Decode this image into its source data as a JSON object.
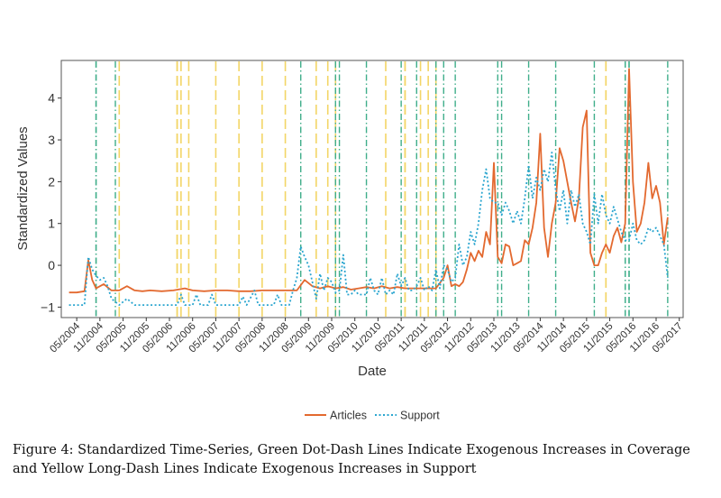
{
  "chart_data": {
    "type": "line",
    "xlabel": "Date",
    "ylabel": "Standardized Values",
    "x_tick_labels": [
      "05/2004",
      "11/2004",
      "05/2005",
      "11/2005",
      "05/2006",
      "11/2006",
      "05/2007",
      "11/2007",
      "05/2008",
      "11/2008",
      "05/2009",
      "11/2009",
      "05/2010",
      "11/2010",
      "05/2011",
      "11/2011",
      "05/2012",
      "11/2012",
      "05/2013",
      "11/2013",
      "05/2014",
      "11/2014",
      "05/2015",
      "11/2015",
      "05/2016",
      "11/2016",
      "05/2017"
    ],
    "y_ticks": [
      -1,
      0,
      1,
      2,
      3,
      4
    ],
    "ylim": [
      -1.25,
      4.9
    ],
    "xlim": [
      "01/2004",
      "06/2017"
    ],
    "grid": false,
    "legend_position": "bottom",
    "series": [
      {
        "name": "Articles",
        "color": "#e3692f",
        "style": "solid",
        "points": [
          [
            "03/2004",
            -0.65
          ],
          [
            "05/2004",
            -0.65
          ],
          [
            "07/2004",
            -0.62
          ],
          [
            "08/2004",
            0.12
          ],
          [
            "09/2004",
            -0.35
          ],
          [
            "10/2004",
            -0.55
          ],
          [
            "12/2004",
            -0.45
          ],
          [
            "02/2005",
            -0.6
          ],
          [
            "04/2005",
            -0.6
          ],
          [
            "06/2005",
            -0.5
          ],
          [
            "08/2005",
            -0.6
          ],
          [
            "10/2005",
            -0.62
          ],
          [
            "12/2005",
            -0.6
          ],
          [
            "03/2006",
            -0.62
          ],
          [
            "06/2006",
            -0.6
          ],
          [
            "09/2006",
            -0.55
          ],
          [
            "11/2006",
            -0.6
          ],
          [
            "02/2007",
            -0.62
          ],
          [
            "05/2007",
            -0.6
          ],
          [
            "08/2007",
            -0.6
          ],
          [
            "11/2007",
            -0.62
          ],
          [
            "02/2008",
            -0.62
          ],
          [
            "05/2008",
            -0.6
          ],
          [
            "08/2008",
            -0.6
          ],
          [
            "11/2008",
            -0.6
          ],
          [
            "02/2009",
            -0.6
          ],
          [
            "04/2009",
            -0.35
          ],
          [
            "06/2009",
            -0.5
          ],
          [
            "08/2009",
            -0.55
          ],
          [
            "10/2009",
            -0.5
          ],
          [
            "12/2009",
            -0.55
          ],
          [
            "02/2010",
            -0.52
          ],
          [
            "04/2010",
            -0.58
          ],
          [
            "06/2010",
            -0.55
          ],
          [
            "08/2010",
            -0.52
          ],
          [
            "10/2010",
            -0.55
          ],
          [
            "12/2010",
            -0.5
          ],
          [
            "02/2011",
            -0.55
          ],
          [
            "04/2011",
            -0.52
          ],
          [
            "06/2011",
            -0.55
          ],
          [
            "08/2011",
            -0.55
          ],
          [
            "10/2011",
            -0.55
          ],
          [
            "12/2011",
            -0.55
          ],
          [
            "02/2012",
            -0.55
          ],
          [
            "04/2012",
            -0.3
          ],
          [
            "05/2012",
            0.0
          ],
          [
            "06/2012",
            -0.5
          ],
          [
            "07/2012",
            -0.45
          ],
          [
            "08/2012",
            -0.5
          ],
          [
            "09/2012",
            -0.4
          ],
          [
            "10/2012",
            -0.1
          ],
          [
            "11/2012",
            0.3
          ],
          [
            "12/2012",
            0.1
          ],
          [
            "01/2013",
            0.35
          ],
          [
            "02/2013",
            0.2
          ],
          [
            "03/2013",
            0.8
          ],
          [
            "04/2013",
            0.5
          ],
          [
            "05/2013",
            2.45
          ],
          [
            "06/2013",
            0.2
          ],
          [
            "07/2013",
            0.05
          ],
          [
            "08/2013",
            0.5
          ],
          [
            "09/2013",
            0.45
          ],
          [
            "10/2013",
            0.0
          ],
          [
            "11/2013",
            0.05
          ],
          [
            "12/2013",
            0.1
          ],
          [
            "01/2014",
            0.6
          ],
          [
            "02/2014",
            0.5
          ],
          [
            "03/2014",
            0.9
          ],
          [
            "04/2014",
            1.5
          ],
          [
            "05/2014",
            3.15
          ],
          [
            "06/2014",
            0.9
          ],
          [
            "07/2014",
            0.2
          ],
          [
            "08/2014",
            1.0
          ],
          [
            "09/2014",
            1.5
          ],
          [
            "10/2014",
            2.8
          ],
          [
            "11/2014",
            2.5
          ],
          [
            "12/2014",
            2.0
          ],
          [
            "01/2015",
            1.5
          ],
          [
            "02/2015",
            1.05
          ],
          [
            "03/2015",
            1.6
          ],
          [
            "04/2015",
            3.3
          ],
          [
            "05/2015",
            3.7
          ],
          [
            "06/2015",
            0.3
          ],
          [
            "07/2015",
            0.0
          ],
          [
            "08/2015",
            0.0
          ],
          [
            "09/2015",
            0.3
          ],
          [
            "10/2015",
            0.5
          ],
          [
            "11/2015",
            0.3
          ],
          [
            "12/2015",
            0.7
          ],
          [
            "01/2016",
            0.9
          ],
          [
            "02/2016",
            0.55
          ],
          [
            "03/2016",
            1.0
          ],
          [
            "04/2016",
            4.7
          ],
          [
            "05/2016",
            2.0
          ],
          [
            "06/2016",
            0.8
          ],
          [
            "07/2016",
            1.0
          ],
          [
            "08/2016",
            1.5
          ],
          [
            "09/2016",
            2.45
          ],
          [
            "10/2016",
            1.6
          ],
          [
            "11/2016",
            1.9
          ],
          [
            "12/2016",
            1.5
          ],
          [
            "01/2017",
            0.5
          ],
          [
            "02/2017",
            1.15
          ]
        ]
      },
      {
        "name": "Support",
        "color": "#2aa5cf",
        "style": "dotted",
        "points": [
          [
            "03/2004",
            -0.95
          ],
          [
            "05/2004",
            -0.95
          ],
          [
            "07/2004",
            -0.95
          ],
          [
            "08/2004",
            0.2
          ],
          [
            "09/2004",
            -0.1
          ],
          [
            "10/2004",
            -0.25
          ],
          [
            "11/2004",
            -0.35
          ],
          [
            "12/2004",
            -0.3
          ],
          [
            "01/2005",
            -0.5
          ],
          [
            "02/2005",
            -0.8
          ],
          [
            "04/2005",
            -0.95
          ],
          [
            "06/2005",
            -0.8
          ],
          [
            "08/2005",
            -0.95
          ],
          [
            "11/2005",
            -0.95
          ],
          [
            "02/2006",
            -0.95
          ],
          [
            "05/2006",
            -0.95
          ],
          [
            "07/2006",
            -0.95
          ],
          [
            "08/2006",
            -0.7
          ],
          [
            "09/2006",
            -0.95
          ],
          [
            "11/2006",
            -0.95
          ],
          [
            "12/2006",
            -0.7
          ],
          [
            "01/2007",
            -0.95
          ],
          [
            "03/2007",
            -0.95
          ],
          [
            "04/2007",
            -0.7
          ],
          [
            "05/2007",
            -0.95
          ],
          [
            "07/2007",
            -0.95
          ],
          [
            "09/2007",
            -0.95
          ],
          [
            "11/2007",
            -0.95
          ],
          [
            "12/2007",
            -0.75
          ],
          [
            "01/2008",
            -0.95
          ],
          [
            "03/2008",
            -0.6
          ],
          [
            "04/2008",
            -0.95
          ],
          [
            "06/2008",
            -0.95
          ],
          [
            "08/2008",
            -0.95
          ],
          [
            "09/2008",
            -0.7
          ],
          [
            "10/2008",
            -0.95
          ],
          [
            "12/2008",
            -0.95
          ],
          [
            "01/2009",
            -0.6
          ],
          [
            "02/2009",
            -0.3
          ],
          [
            "03/2009",
            0.45
          ],
          [
            "04/2009",
            0.2
          ],
          [
            "05/2009",
            0.0
          ],
          [
            "06/2009",
            -0.4
          ],
          [
            "07/2009",
            -0.8
          ],
          [
            "08/2009",
            -0.2
          ],
          [
            "09/2009",
            -0.6
          ],
          [
            "10/2009",
            -0.3
          ],
          [
            "11/2009",
            -0.4
          ],
          [
            "12/2009",
            -0.65
          ],
          [
            "01/2010",
            -0.6
          ],
          [
            "02/2010",
            0.25
          ],
          [
            "03/2010",
            -0.7
          ],
          [
            "04/2010",
            -0.7
          ],
          [
            "05/2010",
            -0.6
          ],
          [
            "06/2010",
            -0.7
          ],
          [
            "08/2010",
            -0.7
          ],
          [
            "09/2010",
            -0.3
          ],
          [
            "10/2010",
            -0.6
          ],
          [
            "11/2010",
            -0.7
          ],
          [
            "12/2010",
            -0.3
          ],
          [
            "01/2011",
            -0.7
          ],
          [
            "02/2011",
            -0.6
          ],
          [
            "03/2011",
            -0.7
          ],
          [
            "04/2011",
            -0.2
          ],
          [
            "05/2011",
            -0.5
          ],
          [
            "06/2011",
            -0.3
          ],
          [
            "07/2011",
            -0.6
          ],
          [
            "08/2011",
            -0.6
          ],
          [
            "09/2011",
            -0.5
          ],
          [
            "10/2011",
            -0.3
          ],
          [
            "11/2011",
            -0.6
          ],
          [
            "12/2011",
            -0.5
          ],
          [
            "01/2012",
            -0.6
          ],
          [
            "02/2012",
            -0.1
          ],
          [
            "03/2012",
            -0.55
          ],
          [
            "04/2012",
            0.0
          ],
          [
            "05/2012",
            -0.1
          ],
          [
            "06/2012",
            -0.4
          ],
          [
            "07/2012",
            -0.3
          ],
          [
            "08/2012",
            0.5
          ],
          [
            "09/2012",
            0.0
          ],
          [
            "10/2012",
            0.2
          ],
          [
            "11/2012",
            0.8
          ],
          [
            "12/2012",
            0.5
          ],
          [
            "01/2013",
            1.0
          ],
          [
            "02/2013",
            1.8
          ],
          [
            "03/2013",
            2.3
          ],
          [
            "04/2013",
            1.6
          ],
          [
            "05/2013",
            1.5
          ],
          [
            "06/2013",
            1.5
          ],
          [
            "07/2013",
            1.2
          ],
          [
            "08/2013",
            1.5
          ],
          [
            "09/2013",
            1.3
          ],
          [
            "10/2013",
            1.0
          ],
          [
            "11/2013",
            1.3
          ],
          [
            "12/2013",
            1.0
          ],
          [
            "01/2014",
            1.6
          ],
          [
            "02/2014",
            2.4
          ],
          [
            "03/2014",
            1.6
          ],
          [
            "04/2014",
            2.1
          ],
          [
            "05/2014",
            1.8
          ],
          [
            "06/2014",
            2.3
          ],
          [
            "07/2014",
            2.0
          ],
          [
            "08/2014",
            2.7
          ],
          [
            "09/2014",
            1.8
          ],
          [
            "10/2014",
            1.3
          ],
          [
            "11/2014",
            1.8
          ],
          [
            "12/2014",
            1.0
          ],
          [
            "01/2015",
            1.8
          ],
          [
            "02/2015",
            1.4
          ],
          [
            "03/2015",
            1.7
          ],
          [
            "04/2015",
            1.0
          ],
          [
            "05/2015",
            0.8
          ],
          [
            "06/2015",
            0.5
          ],
          [
            "07/2015",
            1.7
          ],
          [
            "08/2015",
            1.0
          ],
          [
            "09/2015",
            1.7
          ],
          [
            "10/2015",
            1.2
          ],
          [
            "11/2015",
            1.0
          ],
          [
            "12/2015",
            1.4
          ],
          [
            "01/2016",
            1.1
          ],
          [
            "02/2016",
            0.8
          ],
          [
            "03/2016",
            0.6
          ],
          [
            "04/2016",
            0.6
          ],
          [
            "05/2016",
            1.0
          ],
          [
            "06/2016",
            0.6
          ],
          [
            "07/2016",
            0.5
          ],
          [
            "08/2016",
            0.6
          ],
          [
            "09/2016",
            0.9
          ],
          [
            "10/2016",
            0.8
          ],
          [
            "11/2016",
            0.9
          ],
          [
            "12/2016",
            0.7
          ],
          [
            "01/2017",
            0.5
          ],
          [
            "02/2017",
            -0.3
          ]
        ]
      }
    ],
    "reference_lines": {
      "green_dot_dash": {
        "color": "#3fae8a",
        "dates": [
          "10/2004",
          "10/2004",
          "03/2005",
          "03/2009",
          "12/2009",
          "01/2010",
          "08/2010",
          "05/2011",
          "09/2011",
          "02/2012",
          "04/2012",
          "07/2012",
          "06/2013",
          "07/2013",
          "02/2014",
          "09/2014",
          "07/2015",
          "03/2016",
          "03/2016",
          "04/2016",
          "04/2016",
          "02/2017"
        ]
      },
      "yellow_long_dash": {
        "color": "#f3d566",
        "dates": [
          "04/2005",
          "07/2006",
          "07/2006",
          "08/2006",
          "10/2006",
          "05/2007",
          "11/2007",
          "05/2008",
          "11/2008",
          "07/2009",
          "10/2009",
          "12/2009",
          "01/2011",
          "06/2011",
          "06/2011",
          "10/2011",
          "12/2011",
          "02/2012",
          "10/2015",
          "10/2015"
        ]
      }
    }
  },
  "caption": "Figure 4: Standardized Time-Series, Green Dot-Dash Lines Indicate Exogenous Increases in Coverage and Yellow Long-Dash Lines Indicate Exogenous Increases in Support"
}
